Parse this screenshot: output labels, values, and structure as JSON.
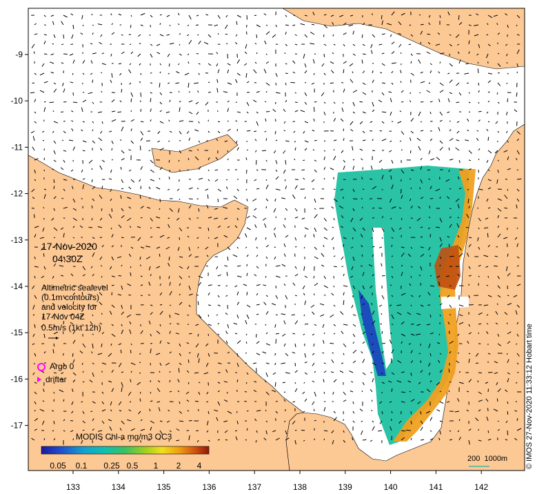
{
  "map": {
    "date": "17-Nov-2020",
    "time": "04:30Z",
    "sealevel_caption": [
      "Altimetric sealevel",
      "(0.1m contours)",
      "and velocity for",
      "17-Nov 04Z"
    ],
    "velocity_scale_label": "0.5m/s (1kt 12h)",
    "legend": {
      "argo_label": "Argo 0",
      "drifter_label": "drifter"
    },
    "colorbar": {
      "title": "MODIS Chl-a mg/m3 OC3",
      "ticks": [
        "0.05",
        "0.1",
        "0.25",
        "0.5",
        "1",
        "2",
        "4"
      ]
    },
    "depth_scale_label": "200  1000m",
    "credit": "© IMOS 27-Nov-2020 11:33:12 Hobart time",
    "x_axis": {
      "ticks": [
        "133",
        "134",
        "135",
        "136",
        "137",
        "138",
        "139",
        "140",
        "141",
        "142"
      ]
    },
    "y_axis": {
      "ticks": [
        "-9",
        "-10",
        "-11",
        "-12",
        "-13",
        "-14",
        "-15",
        "-16",
        "-17"
      ]
    },
    "colors": {
      "land": "#fcc894",
      "ocean": "#ffffff",
      "argo": "#ff00ff",
      "drifter": "#ff00ff",
      "depth_contour": "#20b0a0"
    }
  }
}
